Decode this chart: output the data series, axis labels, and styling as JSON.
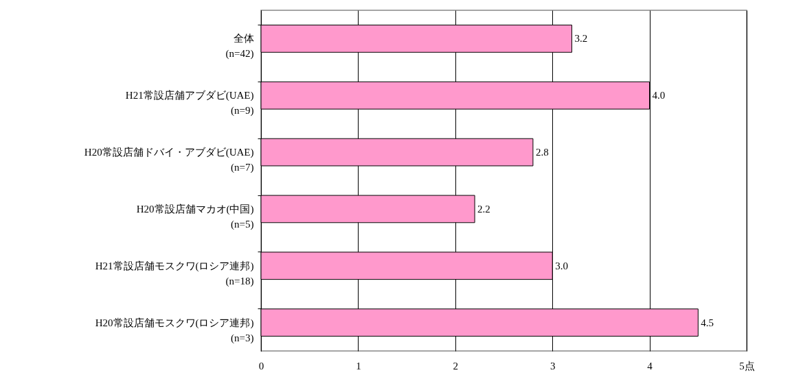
{
  "chart_data": {
    "type": "bar",
    "orientation": "horizontal",
    "categories": [
      "全体\n(n=42)",
      "H21常設店舗アブダビ(UAE)\n(n=9)",
      "H20常設店舗ドバイ・アブダビ(UAE)\n(n=7)",
      "H20常設店舗マカオ(中国)\n(n=5)",
      "H21常設店舗モスクワ(ロシア連邦)\n(n=18)",
      "H20常設店舗モスクワ(ロシア連邦)\n(n=3)"
    ],
    "values": [
      3.2,
      4.0,
      2.8,
      2.2,
      3.0,
      4.5
    ],
    "value_labels": [
      "3.2",
      "4.0",
      "2.8",
      "2.2",
      "3.0",
      "4.5"
    ],
    "color": "#ff99cc",
    "xlim": [
      0,
      5
    ],
    "xticks": [
      0,
      1,
      2,
      3,
      4,
      {
        "value": 5,
        "label": "5点"
      }
    ],
    "grid": "x"
  }
}
